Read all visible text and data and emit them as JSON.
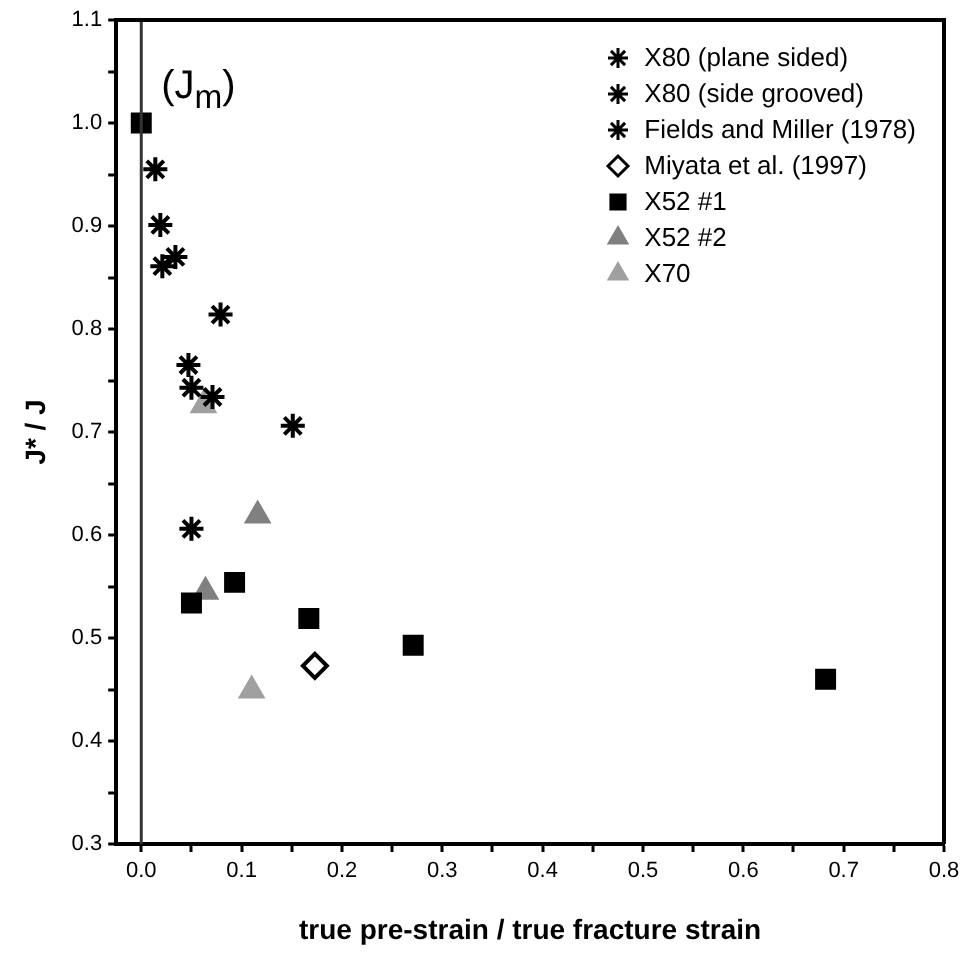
{
  "chart_data": {
    "type": "scatter",
    "xlabel": "true pre-strain / true fracture strain",
    "ylabel": "J* / J",
    "xlim": [
      -0.025,
      0.8
    ],
    "ylim": [
      0.3,
      1.1
    ],
    "xticks": [
      {
        "value": 0,
        "label": "0.0"
      },
      {
        "value": 0.05,
        "label": null
      },
      {
        "value": 0.1,
        "label": "0.1"
      },
      {
        "value": 0.15,
        "label": null
      },
      {
        "value": 0.2,
        "label": "0.2"
      },
      {
        "value": 0.25,
        "label": null
      },
      {
        "value": 0.3,
        "label": "0.3"
      },
      {
        "value": 0.35,
        "label": null
      },
      {
        "value": 0.4,
        "label": "0.4"
      },
      {
        "value": 0.45,
        "label": null
      },
      {
        "value": 0.5,
        "label": "0.5"
      },
      {
        "value": 0.55,
        "label": null
      },
      {
        "value": 0.6,
        "label": "0.6"
      },
      {
        "value": 0.65,
        "label": null
      },
      {
        "value": 0.7,
        "label": "0.7"
      },
      {
        "value": 0.75,
        "label": null
      },
      {
        "value": 0.8,
        "label": "0.8"
      }
    ],
    "yticks": [
      {
        "value": 0.3,
        "label": "0.3"
      },
      {
        "value": 0.35,
        "label": null
      },
      {
        "value": 0.4,
        "label": "0.4"
      },
      {
        "value": 0.45,
        "label": null
      },
      {
        "value": 0.5,
        "label": "0.5"
      },
      {
        "value": 0.55,
        "label": null
      },
      {
        "value": 0.6,
        "label": "0.6"
      },
      {
        "value": 0.65,
        "label": null
      },
      {
        "value": 0.7,
        "label": "0.7"
      },
      {
        "value": 0.75,
        "label": null
      },
      {
        "value": 0.8,
        "label": "0.8"
      },
      {
        "value": 0.85,
        "label": null
      },
      {
        "value": 0.9,
        "label": "0.9"
      },
      {
        "value": 0.95,
        "label": null
      },
      {
        "value": 1.0,
        "label": "1.0"
      },
      {
        "value": 1.05,
        "label": null
      },
      {
        "value": 1.1,
        "label": "1.1"
      }
    ],
    "grid": false,
    "legend": "top right",
    "ref_lines": [
      {
        "axis": "x",
        "value": 0,
        "color": "#333333"
      }
    ],
    "annotations": [
      {
        "text": "(J$_{m}$)",
        "x": 0,
        "y": 1.0
      }
    ],
    "series": [
      {
        "name": "X80 (plane sided)",
        "color": "#000000",
        "marker": "cross",
        "x": [
          0.021,
          0.047
        ],
        "values": [
          0.861,
          0.765
        ]
      },
      {
        "name": "X80 (side grooved)",
        "color": "#000000",
        "marker": "cross",
        "x": [
          0.019,
          0.05
        ],
        "values": [
          0.901,
          0.606
        ]
      },
      {
        "name": "Fields and Miller (1978)",
        "color": "#000000",
        "marker": "cross",
        "x": [
          0.014,
          0.034,
          0.079,
          0.05,
          0.071,
          0.151
        ],
        "values": [
          0.955,
          0.87,
          0.814,
          0.743,
          0.734,
          0.706
        ]
      },
      {
        "name": "Miyata et al. (1997)",
        "color": "#000000",
        "marker": "diamond",
        "x": [
          0.173
        ],
        "values": [
          0.473
        ]
      },
      {
        "name": "X52 #1",
        "color": "#000000",
        "marker": "square",
        "x": [
          0,
          0.05,
          0.093,
          0.167,
          0.271,
          0.682
        ],
        "values": [
          1.0,
          0.534,
          0.554,
          0.519,
          0.493,
          0.46
        ]
      },
      {
        "name": "X52 #2",
        "color": "#808080",
        "marker": "triangle",
        "x": [
          0.064,
          0.116
        ],
        "values": [
          0.545,
          0.619
        ]
      },
      {
        "name": "X70",
        "color": "#a0a0a0",
        "marker": "triangle",
        "x": [
          0.062,
          0.11
        ],
        "values": [
          0.726,
          0.449
        ]
      }
    ]
  }
}
